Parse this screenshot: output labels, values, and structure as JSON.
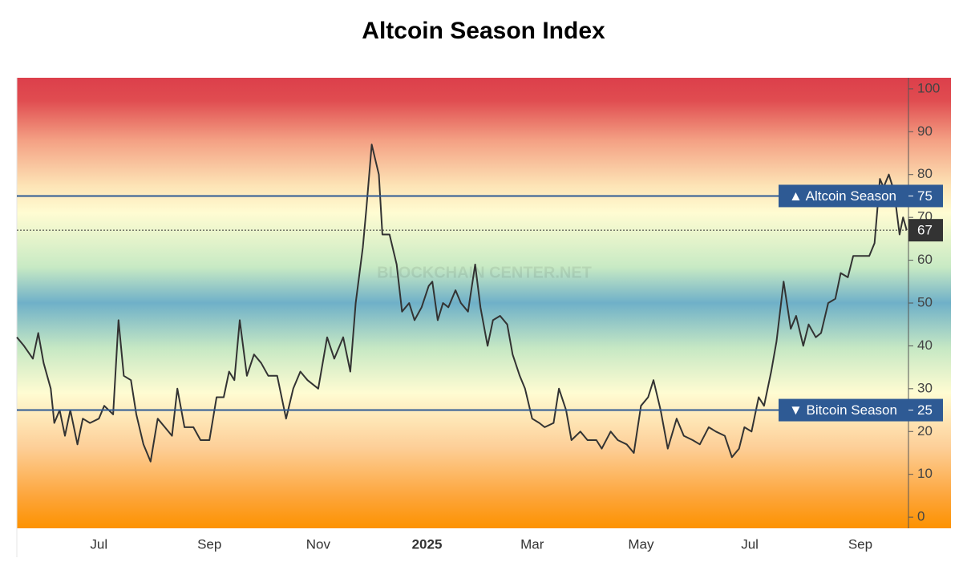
{
  "chart_data": {
    "type": "line",
    "title": "Altcoin Season Index",
    "watermark": "BLOCKCHAIN CENTER.NET",
    "x": [
      -46,
      -42,
      -37,
      -34,
      -31,
      -27,
      -25,
      -22,
      -19,
      -16,
      -12,
      -9,
      -5,
      0,
      3,
      8,
      11,
      14,
      18,
      21,
      25,
      29,
      33,
      37,
      41,
      44,
      48,
      53,
      57,
      62,
      66,
      70,
      73,
      76,
      79,
      83,
      87,
      91,
      95,
      100,
      105,
      109,
      113,
      117,
      123,
      128,
      132,
      137,
      141,
      144,
      148,
      150,
      153,
      157,
      159,
      163,
      167,
      170,
      174,
      177,
      181,
      185,
      187,
      190,
      193,
      196,
      200,
      203,
      207,
      211,
      214,
      218,
      221,
      225,
      229,
      232,
      236,
      239,
      243,
      247,
      250,
      255,
      258,
      262,
      265,
      270,
      274,
      279,
      282,
      287,
      291,
      296,
      300,
      304,
      308,
      311,
      315,
      319,
      324,
      328,
      333,
      337,
      342,
      346,
      351,
      355,
      359,
      362,
      366,
      370,
      373,
      377,
      380,
      384,
      388,
      391,
      395,
      398,
      402,
      405,
      409,
      413,
      416,
      420,
      423,
      428,
      432,
      435,
      438,
      440,
      443,
      446,
      449,
      451,
      453
    ],
    "series": [
      {
        "name": "Altcoin Season Index",
        "color": "#333333",
        "values": [
          42,
          40,
          37,
          43,
          36,
          30,
          22,
          25,
          19,
          25,
          17,
          23,
          22,
          23,
          26,
          24,
          46,
          33,
          32,
          24,
          17,
          13,
          23,
          21,
          19,
          30,
          21,
          21,
          18,
          18,
          28,
          28,
          34,
          32,
          46,
          33,
          38,
          36,
          33,
          33,
          23,
          30,
          34,
          32,
          30,
          42,
          37,
          42,
          34,
          50,
          63,
          72,
          87,
          80,
          66,
          66,
          59,
          48,
          50,
          46,
          49,
          54,
          55,
          46,
          50,
          49,
          53,
          50,
          48,
          59,
          49,
          40,
          46,
          47,
          45,
          38,
          33,
          30,
          23,
          22,
          21,
          22,
          30,
          25,
          18,
          20,
          18,
          18,
          16,
          20,
          18,
          17,
          15,
          26,
          28,
          32,
          25,
          16,
          23,
          19,
          18,
          17,
          21,
          20,
          19,
          14,
          16,
          21,
          20,
          28,
          26,
          34,
          41,
          55,
          44,
          47,
          40,
          45,
          42,
          43,
          50,
          51,
          57,
          56,
          61,
          61,
          61,
          64,
          79,
          77,
          80,
          76,
          66,
          70,
          67
        ]
      }
    ],
    "xlim": [
      -46,
      454
    ],
    "xticks": [
      {
        "value": 0,
        "label": "Jul"
      },
      {
        "value": 62,
        "label": "Sep"
      },
      {
        "value": 123,
        "label": "Nov"
      },
      {
        "value": 184,
        "label": "2025"
      },
      {
        "value": 243,
        "label": "Mar"
      },
      {
        "value": 304,
        "label": "May"
      },
      {
        "value": 365,
        "label": "Jul"
      },
      {
        "value": 427,
        "label": "Sep"
      }
    ],
    "ylim": [
      -2.6,
      102.6
    ],
    "yticks": [
      0,
      10,
      20,
      30,
      40,
      50,
      60,
      70,
      80,
      90,
      100
    ],
    "thresholds": [
      {
        "label": "▲ Altcoin Season",
        "value": 75
      },
      {
        "label": "▼ Bitcoin Season",
        "value": 25
      }
    ],
    "current": {
      "value": 67
    }
  }
}
